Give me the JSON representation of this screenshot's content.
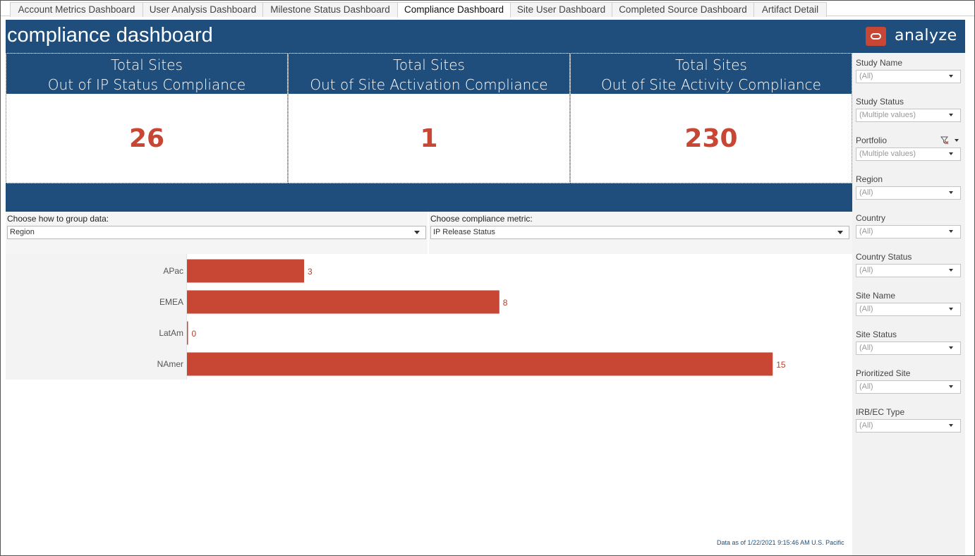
{
  "tabs": [
    {
      "label": "Account Metrics Dashboard",
      "active": false
    },
    {
      "label": "User Analysis Dashboard",
      "active": false
    },
    {
      "label": "Milestone Status Dashboard",
      "active": false
    },
    {
      "label": "Compliance Dashboard",
      "active": true
    },
    {
      "label": "Site User Dashboard",
      "active": false
    },
    {
      "label": "Completed Source Dashboard",
      "active": false
    },
    {
      "label": "Artifact Detail",
      "active": false
    }
  ],
  "header": {
    "title": "compliance dashboard",
    "brand": "analyze",
    "brand_icon": "oracle-logo-icon"
  },
  "kpis": [
    {
      "line1": "Total Sites",
      "line2": "Out of IP Status Compliance",
      "value": "26"
    },
    {
      "line1": "Total Sites",
      "line2": "Out of Site Activation Compliance",
      "value": "1"
    },
    {
      "line1": "Total Sites",
      "line2": "Out of Site Activity Compliance",
      "value": "230"
    }
  ],
  "params": {
    "group_label": "Choose how to group data:",
    "group_value": "Region",
    "metric_label": "Choose compliance metric:",
    "metric_value": "IP Release Status"
  },
  "chart_data": {
    "type": "bar",
    "orientation": "horizontal",
    "categories": [
      "APac",
      "EMEA",
      "LatAm",
      "NAmer"
    ],
    "values": [
      3,
      8,
      0,
      15
    ],
    "bar_color": "#c74634",
    "xlim": [
      0,
      15
    ],
    "grid": false
  },
  "footnote": "Data as of 1/22/2021 9:15:46 AM U.S. Pacific",
  "filters": [
    {
      "label": "Study Name",
      "value": "(All)"
    },
    {
      "label": "Study Status",
      "value": "(Multiple values)"
    },
    {
      "label": "Portfolio",
      "value": "(Multiple values)",
      "has_clear": true
    },
    {
      "label": "Region",
      "value": "(All)"
    },
    {
      "label": "Country",
      "value": "(All)"
    },
    {
      "label": "Country Status",
      "value": "(All)"
    },
    {
      "label": "Site Name",
      "value": "(All)"
    },
    {
      "label": "Site Status",
      "value": "(All)"
    },
    {
      "label": "Prioritized Site",
      "value": "(All)"
    },
    {
      "label": "IRB/EC Type",
      "value": "(All)"
    }
  ],
  "colors": {
    "header_blue": "#1f4e7d",
    "accent_red": "#c74634",
    "sidebar_gray": "#f2f2f2"
  }
}
